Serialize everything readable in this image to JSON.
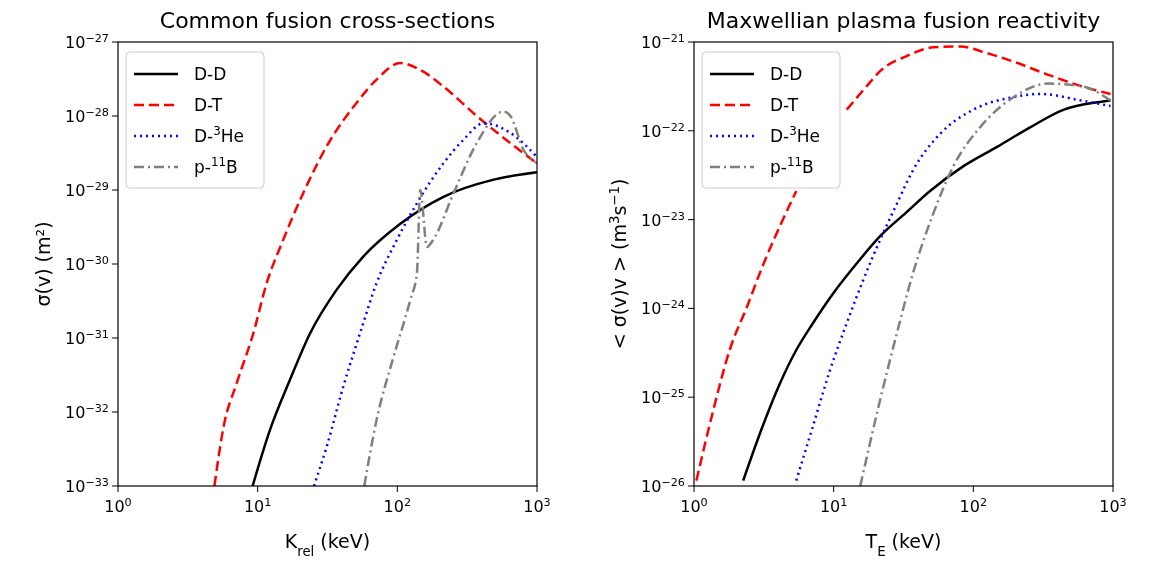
{
  "chart_data": [
    {
      "type": "line",
      "title": "Common fusion cross-sections",
      "xlabel": "K$_{rel}$ (keV)",
      "ylabel": "σ(v) (m²)",
      "log": "xy",
      "legend": "top left",
      "grid": false,
      "xlim": [
        1,
        1000
      ],
      "ylim": [
        1e-33,
        1e-27
      ],
      "xticks": [
        {
          "value": 1,
          "label": "10$^{0}$"
        },
        {
          "value": 10,
          "label": "10$^{1}$"
        },
        {
          "value": 100,
          "label": "10$^{2}$"
        },
        {
          "value": 1000,
          "label": "10$^{3}$"
        }
      ],
      "yticks": [
        {
          "value": 1e-33,
          "label": "10$^{−33}$"
        },
        {
          "value": 1e-32,
          "label": "10$^{−32}$"
        },
        {
          "value": 1e-31,
          "label": "10$^{−31}$"
        },
        {
          "value": 1e-30,
          "label": "10$^{−30}$"
        },
        {
          "value": 1e-29,
          "label": "10$^{−29}$"
        },
        {
          "value": 1e-28,
          "label": "10$^{−28}$"
        },
        {
          "value": 1e-27,
          "label": "10$^{−27}$"
        }
      ],
      "series": [
        {
          "name": "D-D",
          "color": "#000000",
          "line_style": "solid",
          "x": [
            9.2,
            12.2,
            17,
            23.7,
            36.8,
            57,
            105,
            214,
            490,
            1000
          ],
          "values": [
            1e-33,
            5.6e-33,
            2.7e-32,
            1.15e-31,
            4.5e-31,
            1.26e-30,
            3.5e-30,
            8.1e-30,
            1.38e-29,
            1.74e-29
          ]
        },
        {
          "name": "D-T",
          "color": "#ff0000",
          "line_style": "dashed",
          "x": [
            4.9,
            5.7,
            7.1,
            9.3,
            11.6,
            15.2,
            21.2,
            31.2,
            51,
            71,
            105,
            146,
            214,
            370,
            645,
            1000
          ],
          "values": [
            1e-33,
            6.3e-33,
            2.5e-32,
            1.15e-31,
            5.5e-31,
            2.1e-30,
            9.1e-30,
            3.9e-29,
            1.5e-28,
            3.1e-28,
            5.2e-28,
            4.2e-28,
            2.5e-28,
            1e-28,
            4.3e-29,
            2.3e-29
          ]
        },
        {
          "name": "D-$^{3}$He",
          "color": "#0000ff",
          "line_style": "dotted",
          "x": [
            25.3,
            31.2,
            41,
            54,
            71,
            99,
            138,
            214,
            298,
            415,
            645,
            1000
          ],
          "values": [
            1e-33,
            3.4e-33,
            2.2e-32,
            1.15e-31,
            5.5e-31,
            2.1e-30,
            6.6e-30,
            2.3e-29,
            4.8e-29,
            8e-29,
            5.9e-29,
            2.8e-29
          ]
        },
        {
          "name": "p-$^{11}$B",
          "color": "#808080",
          "line_style": "dashdot",
          "x": [
            58,
            71,
            94,
            124,
            138,
            146,
            163,
            180,
            253,
            370,
            575,
            645,
            800,
            1000
          ],
          "values": [
            1e-33,
            7.8e-33,
            5.6e-32,
            3.3e-31,
            7.4e-31,
            1e-29,
            1.7e-30,
            2.1e-30,
            9.1e-30,
            4.3e-29,
            1.15e-28,
            1e-28,
            3.5e-29,
            2.3e-29
          ]
        }
      ]
    },
    {
      "type": "line",
      "title": "Maxwellian plasma fusion reactivity",
      "xlabel": "T$_{E}$ (keV)",
      "ylabel": "< σ(v)v >  (m$^{3}$s$^{−1}$)",
      "log": "xy",
      "legend": "top left",
      "grid": false,
      "xlim": [
        1,
        1000
      ],
      "ylim": [
        1e-26,
        1e-21
      ],
      "xticks": [
        {
          "value": 1,
          "label": "10$^{0}$"
        },
        {
          "value": 10,
          "label": "10$^{1}$"
        },
        {
          "value": 100,
          "label": "10$^{2}$"
        },
        {
          "value": 1000,
          "label": "10$^{3}$"
        }
      ],
      "yticks": [
        {
          "value": 1e-26,
          "label": "10$^{−26}$"
        },
        {
          "value": 1e-25,
          "label": "10$^{−25}$"
        },
        {
          "value": 1e-24,
          "label": "10$^{−24}$"
        },
        {
          "value": 1e-23,
          "label": "10$^{−23}$"
        },
        {
          "value": 1e-22,
          "label": "10$^{−22}$"
        },
        {
          "value": 1e-21,
          "label": "10$^{−21}$"
        }
      ],
      "series": [
        {
          "name": "D-D",
          "color": "#000000",
          "line_style": "solid",
          "x": [
            2.25,
            3.1,
            4.1,
            5.4,
            7.1,
            10,
            14.6,
            21.5,
            33,
            49,
            85,
            148,
            257,
            445,
            775,
            960
          ],
          "values": [
            1.15e-26,
            4.7e-26,
            1.4e-25,
            3.4e-25,
            6.8e-25,
            1.5e-24,
            3.2e-24,
            6.5e-24,
            1.2e-23,
            2.1e-23,
            4e-23,
            6.6e-23,
            1.1e-22,
            1.73e-22,
            2.1e-22,
            2.2e-22
          ]
        },
        {
          "name": "D-T",
          "color": "#ff0000",
          "line_style": "dashed",
          "x": [
            1.04,
            1.37,
            1.8,
            2.4,
            3.1,
            4.1,
            5.4,
            8,
            12.4,
            17.3,
            21.5,
            33,
            52,
            81,
            125,
            195,
            340,
            586,
            960
          ],
          "values": [
            1.15e-26,
            7e-26,
            3.4e-25,
            1.05e-24,
            3e-24,
            8.3e-24,
            2.1e-23,
            null,
            1.73e-22,
            3.2e-22,
            4.7e-22,
            6.9e-22,
            8.7e-22,
            8.9e-22,
            7.5e-22,
            6e-22,
            4.3e-22,
            3.2e-22,
            2.6e-22
          ]
        },
        {
          "name": "D-$^{3}$He",
          "color": "#0000ff",
          "line_style": "dotted",
          "x": [
            5.4,
            7.1,
            9.4,
            12.4,
            16.3,
            21.5,
            28.3,
            37,
            58,
            100,
            195,
            304,
            586,
            960
          ],
          "values": [
            1.15e-26,
            4.7e-26,
            2e-25,
            6.8e-25,
            2.1e-24,
            5.9e-24,
            1.5e-23,
            3.6e-23,
            9.3e-23,
            1.73e-22,
            2.4e-22,
            2.6e-22,
            2.2e-22,
            1.9e-22
          ]
        },
        {
          "name": "p-$^{11}$B",
          "color": "#808080",
          "line_style": "dashdot",
          "x": [
            15.5,
            21.5,
            28.3,
            37,
            52,
            72,
            112,
            195,
            340,
            586,
            960
          ],
          "values": [
            1e-26,
            9.3e-26,
            5.2e-25,
            2.5e-24,
            1.2e-23,
            4e-23,
            1.1e-22,
            2.4e-22,
            3.4e-22,
            3.2e-22,
            2.2e-22
          ]
        }
      ]
    }
  ]
}
